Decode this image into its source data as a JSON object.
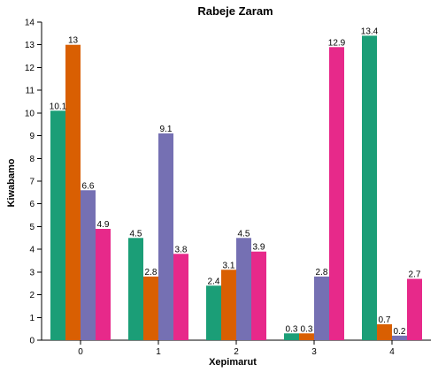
{
  "chart_data": {
    "type": "bar",
    "title": "Rabeje Zaram",
    "xlabel": "Xepimarut",
    "ylabel": "Kiwabamo",
    "categories": [
      "0",
      "1",
      "2",
      "3",
      "4"
    ],
    "ylim": [
      0,
      14
    ],
    "yticks": [
      "0",
      "1",
      "2",
      "3",
      "4",
      "5",
      "6",
      "7",
      "8",
      "9",
      "10",
      "11",
      "12",
      "13",
      "14"
    ],
    "grid": false,
    "legend": "none",
    "series": [
      {
        "color": "#1b9e77",
        "values": [
          10.1,
          4.5,
          2.4,
          0.3,
          13.4
        ],
        "labels": [
          "10.1",
          "4.5",
          "2.4",
          "0.3",
          "13.4"
        ]
      },
      {
        "color": "#d95f02",
        "values": [
          13,
          2.8,
          3.1,
          0.3,
          0.7
        ],
        "labels": [
          "13",
          "2.8",
          "3.1",
          "0.3",
          "0.7"
        ]
      },
      {
        "color": "#7570b3",
        "values": [
          6.6,
          9.1,
          4.5,
          2.8,
          0.2
        ],
        "labels": [
          "6.6",
          "9.1",
          "4.5",
          "2.8",
          "0.2"
        ]
      },
      {
        "color": "#e7298a",
        "values": [
          4.9,
          3.8,
          3.9,
          12.9,
          2.7
        ],
        "labels": [
          "4.9",
          "3.8",
          "3.9",
          "12.9",
          "2.7"
        ]
      }
    ]
  }
}
